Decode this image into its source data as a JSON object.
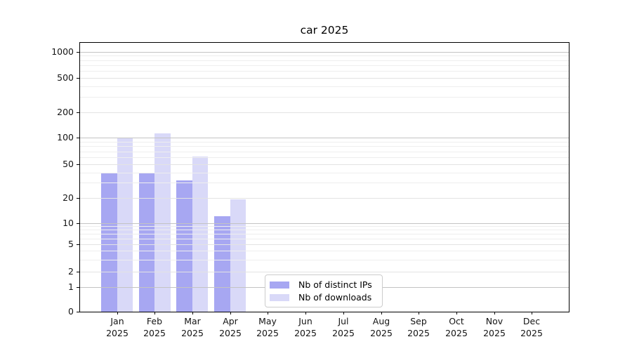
{
  "chart_data": {
    "type": "bar",
    "title": "car 2025",
    "categories": [
      "Jan",
      "Feb",
      "Mar",
      "Apr",
      "May",
      "Jun",
      "Jul",
      "Aug",
      "Sep",
      "Oct",
      "Nov",
      "Dec"
    ],
    "category_sublabel": "2025",
    "series": [
      {
        "name": "Nb of distinct IPs",
        "color": "#a7a7f2",
        "values": [
          40,
          40,
          32,
          12,
          0,
          0,
          0,
          0,
          0,
          0,
          0,
          0
        ]
      },
      {
        "name": "Nb of downloads",
        "color": "#d9d9f8",
        "values": [
          100,
          112,
          61,
          19,
          0,
          0,
          0,
          0,
          0,
          0,
          0,
          0
        ]
      }
    ],
    "yticks": [
      0,
      1,
      2,
      5,
      10,
      20,
      50,
      100,
      200,
      500,
      1000
    ],
    "ylim": [
      0,
      1000
    ],
    "scale": "log-above-1-with-zero-baseline",
    "grid": true,
    "legend_position": "bottom-center-inside",
    "colors": {
      "grid_major": "#c3c3c3",
      "grid_labeled": "#e3e3e3",
      "grid_minor": "#eeeeee",
      "frame": "#000000"
    }
  }
}
